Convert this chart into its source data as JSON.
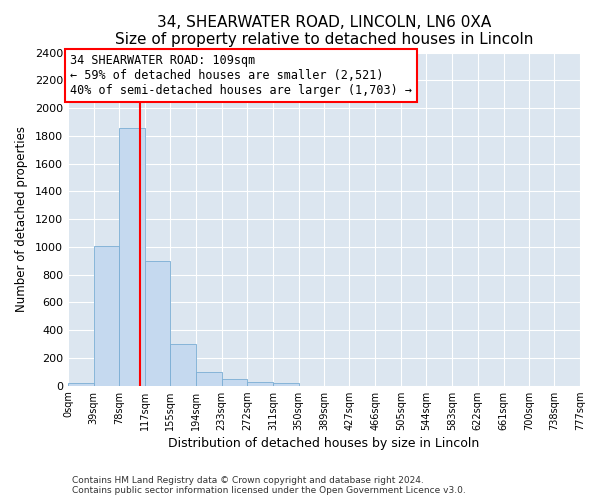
{
  "title": "34, SHEARWATER ROAD, LINCOLN, LN6 0XA",
  "subtitle": "Size of property relative to detached houses in Lincoln",
  "xlabel": "Distribution of detached houses by size in Lincoln",
  "ylabel": "Number of detached properties",
  "bar_color": "#c5d9ef",
  "bar_edge_color": "#7aadd4",
  "background_color": "#dce6f0",
  "grid_color": "#ffffff",
  "bin_edges": [
    0,
    39,
    78,
    117,
    155,
    194,
    233,
    272,
    311,
    350,
    389,
    427,
    466,
    505,
    544,
    583,
    622,
    661,
    700,
    738,
    777
  ],
  "bin_labels": [
    "0sqm",
    "39sqm",
    "78sqm",
    "117sqm",
    "155sqm",
    "194sqm",
    "233sqm",
    "272sqm",
    "311sqm",
    "350sqm",
    "389sqm",
    "427sqm",
    "466sqm",
    "505sqm",
    "544sqm",
    "583sqm",
    "622sqm",
    "661sqm",
    "700sqm",
    "738sqm",
    "777sqm"
  ],
  "bar_heights": [
    20,
    1010,
    1860,
    900,
    300,
    100,
    50,
    30,
    20,
    0,
    0,
    0,
    0,
    0,
    0,
    0,
    0,
    0,
    0,
    0
  ],
  "red_line_x": 109,
  "ylim": [
    0,
    2400
  ],
  "yticks": [
    0,
    200,
    400,
    600,
    800,
    1000,
    1200,
    1400,
    1600,
    1800,
    2000,
    2200,
    2400
  ],
  "annotation_line1": "34 SHEARWATER ROAD: 109sqm",
  "annotation_line2": "← 59% of detached houses are smaller (2,521)",
  "annotation_line3": "40% of semi-detached houses are larger (1,703) →",
  "footer1": "Contains HM Land Registry data © Crown copyright and database right 2024.",
  "footer2": "Contains public sector information licensed under the Open Government Licence v3.0.",
  "fig_bg": "#ffffff",
  "title_fontsize": 11,
  "subtitle_fontsize": 9.5
}
